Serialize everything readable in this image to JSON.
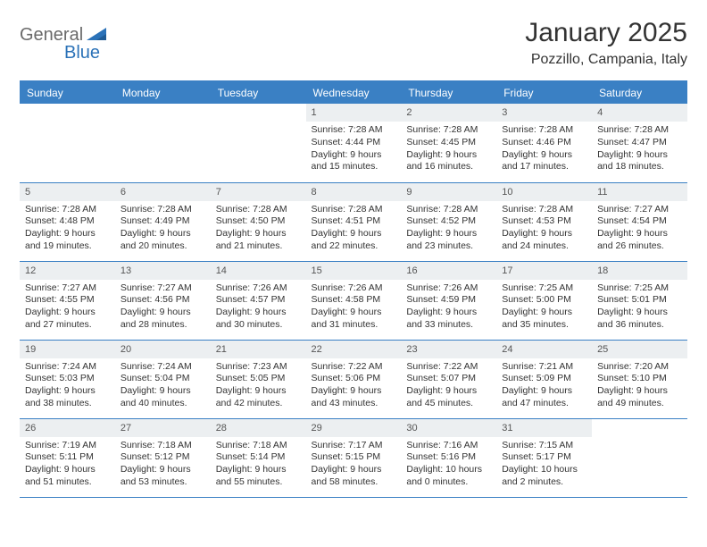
{
  "logo": {
    "gray": "General",
    "blue": "Blue"
  },
  "title": "January 2025",
  "location": "Pozzillo, Campania, Italy",
  "colors": {
    "header_bg": "#3a80c4",
    "header_text": "#ffffff",
    "daynum_bg": "#eceff1",
    "text": "#333333",
    "rule": "#3a80c4",
    "logo_gray": "#6a6a6a",
    "logo_blue": "#2b72b8"
  },
  "day_headers": [
    "Sunday",
    "Monday",
    "Tuesday",
    "Wednesday",
    "Thursday",
    "Friday",
    "Saturday"
  ],
  "weeks": [
    [
      {
        "n": "",
        "lines": []
      },
      {
        "n": "",
        "lines": []
      },
      {
        "n": "",
        "lines": []
      },
      {
        "n": "1",
        "lines": [
          "Sunrise: 7:28 AM",
          "Sunset: 4:44 PM",
          "Daylight: 9 hours and 15 minutes."
        ]
      },
      {
        "n": "2",
        "lines": [
          "Sunrise: 7:28 AM",
          "Sunset: 4:45 PM",
          "Daylight: 9 hours and 16 minutes."
        ]
      },
      {
        "n": "3",
        "lines": [
          "Sunrise: 7:28 AM",
          "Sunset: 4:46 PM",
          "Daylight: 9 hours and 17 minutes."
        ]
      },
      {
        "n": "4",
        "lines": [
          "Sunrise: 7:28 AM",
          "Sunset: 4:47 PM",
          "Daylight: 9 hours and 18 minutes."
        ]
      }
    ],
    [
      {
        "n": "5",
        "lines": [
          "Sunrise: 7:28 AM",
          "Sunset: 4:48 PM",
          "Daylight: 9 hours and 19 minutes."
        ]
      },
      {
        "n": "6",
        "lines": [
          "Sunrise: 7:28 AM",
          "Sunset: 4:49 PM",
          "Daylight: 9 hours and 20 minutes."
        ]
      },
      {
        "n": "7",
        "lines": [
          "Sunrise: 7:28 AM",
          "Sunset: 4:50 PM",
          "Daylight: 9 hours and 21 minutes."
        ]
      },
      {
        "n": "8",
        "lines": [
          "Sunrise: 7:28 AM",
          "Sunset: 4:51 PM",
          "Daylight: 9 hours and 22 minutes."
        ]
      },
      {
        "n": "9",
        "lines": [
          "Sunrise: 7:28 AM",
          "Sunset: 4:52 PM",
          "Daylight: 9 hours and 23 minutes."
        ]
      },
      {
        "n": "10",
        "lines": [
          "Sunrise: 7:28 AM",
          "Sunset: 4:53 PM",
          "Daylight: 9 hours and 24 minutes."
        ]
      },
      {
        "n": "11",
        "lines": [
          "Sunrise: 7:27 AM",
          "Sunset: 4:54 PM",
          "Daylight: 9 hours and 26 minutes."
        ]
      }
    ],
    [
      {
        "n": "12",
        "lines": [
          "Sunrise: 7:27 AM",
          "Sunset: 4:55 PM",
          "Daylight: 9 hours and 27 minutes."
        ]
      },
      {
        "n": "13",
        "lines": [
          "Sunrise: 7:27 AM",
          "Sunset: 4:56 PM",
          "Daylight: 9 hours and 28 minutes."
        ]
      },
      {
        "n": "14",
        "lines": [
          "Sunrise: 7:26 AM",
          "Sunset: 4:57 PM",
          "Daylight: 9 hours and 30 minutes."
        ]
      },
      {
        "n": "15",
        "lines": [
          "Sunrise: 7:26 AM",
          "Sunset: 4:58 PM",
          "Daylight: 9 hours and 31 minutes."
        ]
      },
      {
        "n": "16",
        "lines": [
          "Sunrise: 7:26 AM",
          "Sunset: 4:59 PM",
          "Daylight: 9 hours and 33 minutes."
        ]
      },
      {
        "n": "17",
        "lines": [
          "Sunrise: 7:25 AM",
          "Sunset: 5:00 PM",
          "Daylight: 9 hours and 35 minutes."
        ]
      },
      {
        "n": "18",
        "lines": [
          "Sunrise: 7:25 AM",
          "Sunset: 5:01 PM",
          "Daylight: 9 hours and 36 minutes."
        ]
      }
    ],
    [
      {
        "n": "19",
        "lines": [
          "Sunrise: 7:24 AM",
          "Sunset: 5:03 PM",
          "Daylight: 9 hours and 38 minutes."
        ]
      },
      {
        "n": "20",
        "lines": [
          "Sunrise: 7:24 AM",
          "Sunset: 5:04 PM",
          "Daylight: 9 hours and 40 minutes."
        ]
      },
      {
        "n": "21",
        "lines": [
          "Sunrise: 7:23 AM",
          "Sunset: 5:05 PM",
          "Daylight: 9 hours and 42 minutes."
        ]
      },
      {
        "n": "22",
        "lines": [
          "Sunrise: 7:22 AM",
          "Sunset: 5:06 PM",
          "Daylight: 9 hours and 43 minutes."
        ]
      },
      {
        "n": "23",
        "lines": [
          "Sunrise: 7:22 AM",
          "Sunset: 5:07 PM",
          "Daylight: 9 hours and 45 minutes."
        ]
      },
      {
        "n": "24",
        "lines": [
          "Sunrise: 7:21 AM",
          "Sunset: 5:09 PM",
          "Daylight: 9 hours and 47 minutes."
        ]
      },
      {
        "n": "25",
        "lines": [
          "Sunrise: 7:20 AM",
          "Sunset: 5:10 PM",
          "Daylight: 9 hours and 49 minutes."
        ]
      }
    ],
    [
      {
        "n": "26",
        "lines": [
          "Sunrise: 7:19 AM",
          "Sunset: 5:11 PM",
          "Daylight: 9 hours and 51 minutes."
        ]
      },
      {
        "n": "27",
        "lines": [
          "Sunrise: 7:18 AM",
          "Sunset: 5:12 PM",
          "Daylight: 9 hours and 53 minutes."
        ]
      },
      {
        "n": "28",
        "lines": [
          "Sunrise: 7:18 AM",
          "Sunset: 5:14 PM",
          "Daylight: 9 hours and 55 minutes."
        ]
      },
      {
        "n": "29",
        "lines": [
          "Sunrise: 7:17 AM",
          "Sunset: 5:15 PM",
          "Daylight: 9 hours and 58 minutes."
        ]
      },
      {
        "n": "30",
        "lines": [
          "Sunrise: 7:16 AM",
          "Sunset: 5:16 PM",
          "Daylight: 10 hours and 0 minutes."
        ]
      },
      {
        "n": "31",
        "lines": [
          "Sunrise: 7:15 AM",
          "Sunset: 5:17 PM",
          "Daylight: 10 hours and 2 minutes."
        ]
      },
      {
        "n": "",
        "lines": []
      }
    ]
  ]
}
